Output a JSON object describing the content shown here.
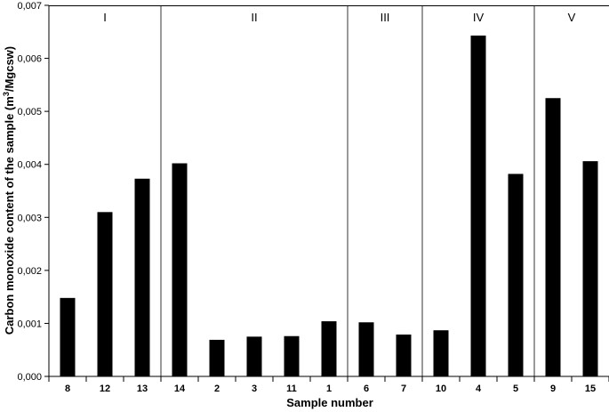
{
  "chart_data": {
    "type": "bar",
    "categories": [
      "8",
      "12",
      "13",
      "14",
      "2",
      "3",
      "11",
      "1",
      "6",
      "7",
      "10",
      "4",
      "5",
      "9",
      "15"
    ],
    "values": [
      0.00148,
      0.0031,
      0.00373,
      0.00402,
      0.00069,
      0.00075,
      0.00076,
      0.00104,
      0.00102,
      0.00079,
      0.00087,
      0.00643,
      0.00382,
      0.00525,
      0.00406
    ],
    "bar_color": "#000000",
    "xlabel": "Sample number",
    "ylabel": {
      "prefix": "Carbon monoxide content of the sample (m",
      "superscript": "3",
      "suffix": "/Mgcsw)"
    },
    "ylim": [
      0,
      0.007
    ],
    "yticks": [
      0,
      0.001,
      0.002,
      0.003,
      0.004,
      0.005,
      0.006,
      0.007
    ],
    "ytick_labels": [
      "0,000",
      "0,001",
      "0,002",
      "0,003",
      "0,004",
      "0,005",
      "0,006",
      "0,007"
    ],
    "groups": [
      {
        "label": "I",
        "categories": [
          "8",
          "12",
          "13"
        ]
      },
      {
        "label": "II",
        "categories": [
          "14",
          "2",
          "3",
          "11",
          "1"
        ]
      },
      {
        "label": "III",
        "categories": [
          "6",
          "7"
        ]
      },
      {
        "label": "IV",
        "categories": [
          "10",
          "4",
          "5"
        ]
      },
      {
        "label": "V",
        "categories": [
          "9",
          "15"
        ]
      }
    ],
    "grid": false,
    "legend": "none"
  }
}
